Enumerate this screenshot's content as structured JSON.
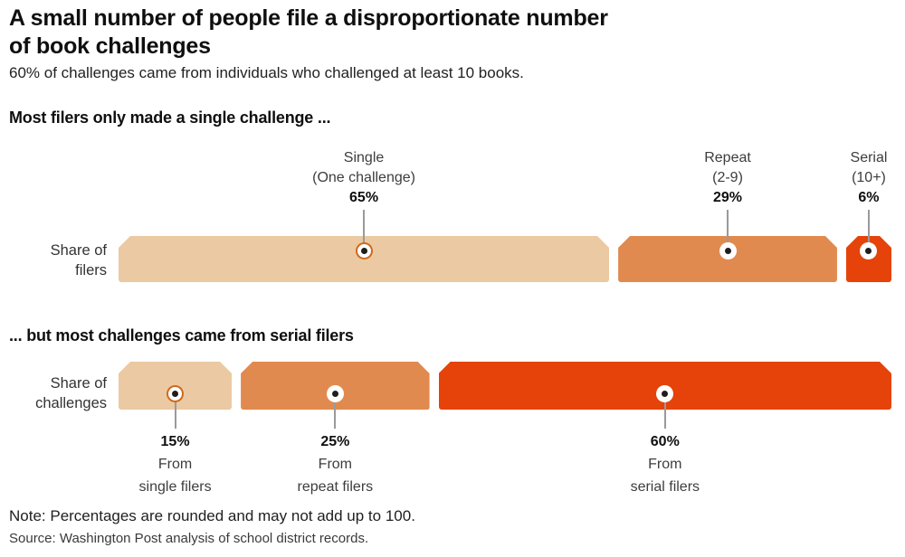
{
  "title_lines": [
    "A small number of people file a disproportionate number",
    "of book challenges"
  ],
  "subtitle": "60% of challenges came from individuals who challenged at least 10 books.",
  "note": "Note: Percentages are rounded and may not add up to 100.",
  "source": "Source: Washington Post analysis of school district records.",
  "colors": {
    "single": "#ebc9a2",
    "repeat": "#e18a4f",
    "serial": "#e5430a",
    "string_line": "#9a9a9a",
    "hole_ring_on_light": "#cf6a1d",
    "hole_ring_on_dark": "#ffffff",
    "hole_dot": "#1e1e1e"
  },
  "chart_data": [
    {
      "type": "bar",
      "title": "Most filers only made a single challenge ...",
      "row_label": [
        "Share of",
        "filers"
      ],
      "labels_position": "above",
      "categories": [
        "Single",
        "Repeat",
        "Serial"
      ],
      "values": [
        65,
        29,
        6
      ],
      "segments": [
        {
          "key": "single",
          "name": "Single",
          "range": "(One challenge)",
          "pct": "65%",
          "value": 65,
          "color": "#ebc9a2",
          "ring": "#cf6a1d"
        },
        {
          "key": "repeat",
          "name": "Repeat",
          "range": "(2-9)",
          "pct": "29%",
          "value": 29,
          "color": "#e18a4f",
          "ring": "#ffffff"
        },
        {
          "key": "serial",
          "name": "Serial",
          "range": "(10+)",
          "pct": "6%",
          "value": 6,
          "color": "#e5430a",
          "ring": "#ffffff"
        }
      ]
    },
    {
      "type": "bar",
      "title": "... but most challenges came from serial filers",
      "row_label": [
        "Share of",
        "challenges"
      ],
      "labels_position": "below",
      "categories": [
        "From single filers",
        "From repeat filers",
        "From serial filers"
      ],
      "values": [
        15,
        25,
        60
      ],
      "segments": [
        {
          "key": "single",
          "pct": "15%",
          "line1": "From",
          "line2": "single filers",
          "value": 15,
          "color": "#ebc9a2",
          "ring": "#cf6a1d"
        },
        {
          "key": "repeat",
          "pct": "25%",
          "line1": "From",
          "line2": "repeat filers",
          "value": 25,
          "color": "#e18a4f",
          "ring": "#ffffff"
        },
        {
          "key": "serial",
          "pct": "60%",
          "line1": "From",
          "line2": "serial filers",
          "value": 60,
          "color": "#e5430a",
          "ring": "#ffffff"
        }
      ]
    }
  ]
}
